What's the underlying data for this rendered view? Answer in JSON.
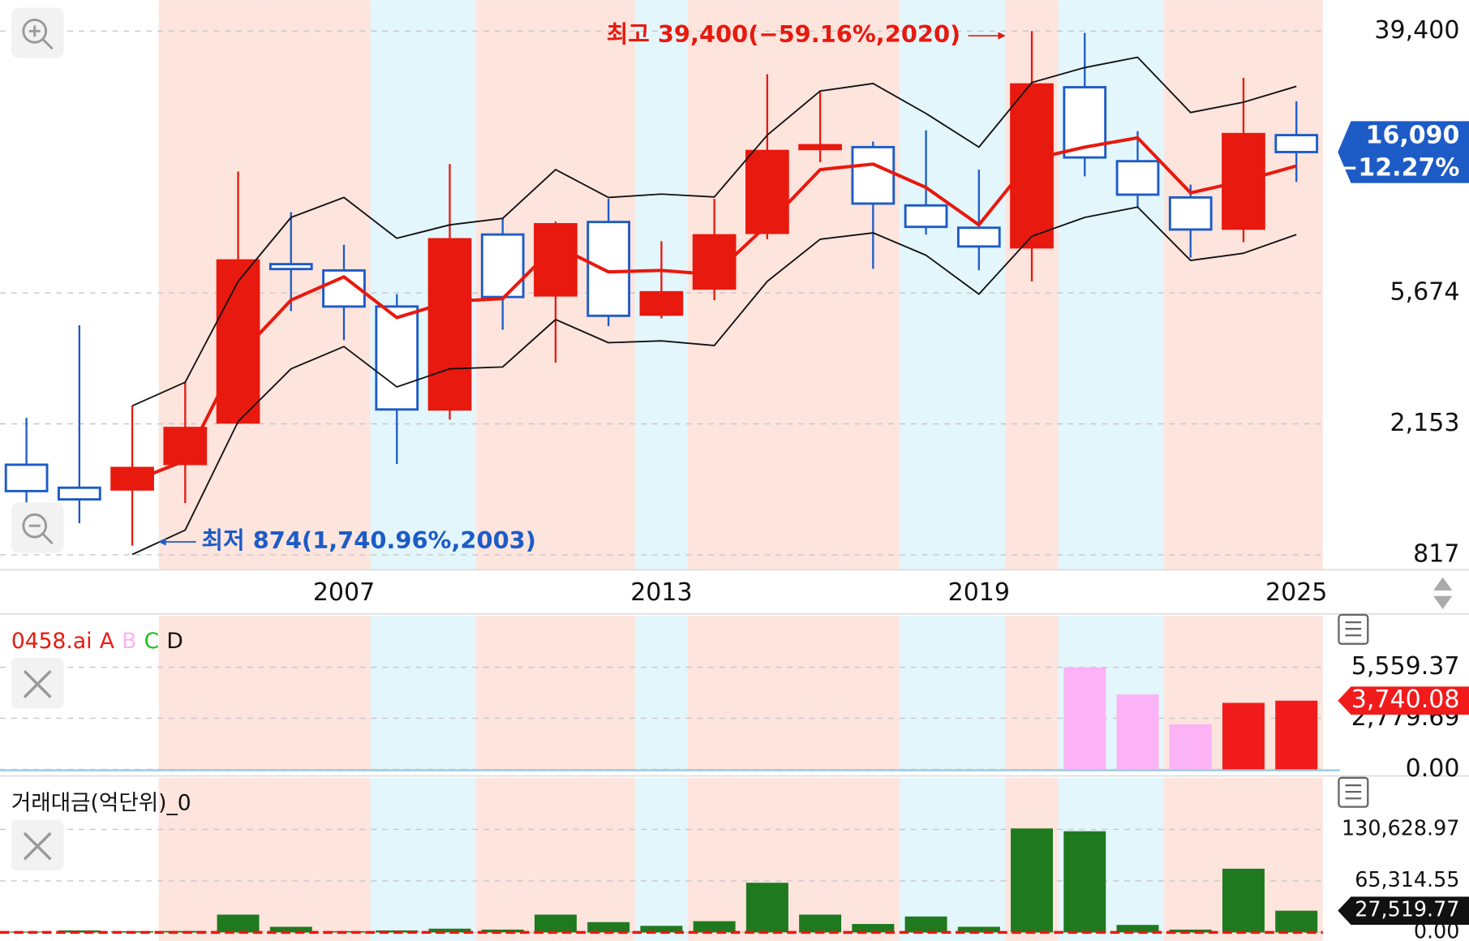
{
  "chart_data": [
    {
      "type": "candlestick",
      "x": [
        2001,
        2002,
        2003,
        2004,
        2005,
        2006,
        2007,
        2008,
        2009,
        2010,
        2011,
        2012,
        2013,
        2014,
        2015,
        2016,
        2017,
        2018,
        2019,
        2020,
        2021,
        2022,
        2023,
        2024,
        2025
      ],
      "open": [
        1591,
        1342,
        1325,
        1600,
        2175,
        7020,
        6700,
        5130,
        2395,
        8740,
        5570,
        9590,
        4830,
        5860,
        8850,
        16450,
        16690,
        10840,
        9190,
        7950,
        26000,
        15040,
        11500,
        9130,
        18240
      ],
      "high": [
        2251,
        4467,
        2462,
        2928,
        13930,
        10320,
        8100,
        5620,
        14720,
        9850,
        9630,
        11380,
        8320,
        11380,
        28630,
        25100,
        17390,
        18900,
        14130,
        39400,
        38850,
        18770,
        12640,
        27860,
        23430
      ],
      "low": [
        990,
        1032,
        874,
        1198,
        2150,
        4960,
        4000,
        1600,
        2222,
        4320,
        3390,
        4435,
        4700,
        5380,
        8440,
        14930,
        6780,
        8740,
        6710,
        6180,
        13450,
        10630,
        7360,
        8260,
        12900
      ],
      "close": [
        1309,
        1231,
        1553,
        2088,
        7215,
        6770,
        5130,
        2395,
        8440,
        5505,
        9430,
        4790,
        5700,
        8690,
        16220,
        16930,
        10990,
        9250,
        8000,
        26540,
        15460,
        11740,
        9070,
        18380,
        16090
      ],
      "lines": [
        {
          "color": "#e8190e",
          "values": [
            null,
            null,
            1407,
            1640,
            3550,
            5380,
            6390,
            4725,
            5325,
            5440,
            8050,
            6630,
            6700,
            6500,
            9390,
            14130,
            14720,
            12380,
            9390,
            15250,
            16690,
            17880,
            11900,
            13000,
            14520
          ]
        },
        {
          "color": "#111111",
          "values": [
            null,
            null,
            2460,
            2930,
            6180,
            9920,
            11500,
            8500,
            9390,
            9850,
            14130,
            11500,
            11790,
            11540,
            18240,
            25280,
            26720,
            21410,
            16690,
            26910,
            30070,
            32450,
            21560,
            23270,
            26170
          ]
        },
        {
          "color": "#111111",
          "values": [
            null,
            null,
            819,
            981,
            2190,
            3235,
            3815,
            2830,
            3235,
            3280,
            4660,
            3925,
            3980,
            3845,
            6180,
            8440,
            8850,
            7500,
            5620,
            8630,
            9920,
            10710,
            7215,
            7610,
            8740
          ]
        }
      ],
      "up_color": "#e8190e",
      "down_color": "#1d5bc6",
      "band_colors": [
        "#ffffff",
        "#ffffff",
        "#ffffff",
        "#fde4dd",
        "#fde4dd",
        "#fde4dd",
        "#fde4dd",
        "#e3f6fc",
        "#e3f6fc",
        "#fde4dd",
        "#fde4dd",
        "#fde4dd",
        "#e3f6fc",
        "#fde4dd",
        "#fde4dd",
        "#fde4dd",
        "#fde4dd",
        "#e3f6fc",
        "#e3f6fc",
        "#fde4dd",
        "#e3f6fc",
        "#e3f6fc",
        "#fde4dd",
        "#fde4dd",
        "#fde4dd"
      ],
      "log_scale": true,
      "grid": true,
      "xlim": [
        2000.5,
        2025.5
      ],
      "xticks": [
        2007,
        2013,
        2019,
        2025
      ],
      "ylim": [
        731,
        49520
      ],
      "yticks": [
        {
          "value": 39400,
          "label": "39,400"
        },
        {
          "value": 5674,
          "label": "5,674"
        },
        {
          "value": 2153,
          "label": "2,153"
        },
        817
      ],
      "high_label": {
        "text": "최고 39,400(−59.16%,2020)",
        "color": "#e8190e"
      },
      "low_label": {
        "text": "최저 874(1,740.96%,2003)",
        "color": "#1d5bc6"
      },
      "last": {
        "value": 16090,
        "label": "16,090"
      },
      "change": "−12.27%",
      "tag_color": "#1d5bc6"
    },
    {
      "type": "bar",
      "title": "0458.ai",
      "title_color": "#e8190e",
      "x": [
        2001,
        2002,
        2003,
        2004,
        2005,
        2006,
        2007,
        2008,
        2009,
        2010,
        2011,
        2012,
        2013,
        2014,
        2015,
        2016,
        2017,
        2018,
        2019,
        2020,
        2021,
        2022,
        2023,
        2024,
        2025
      ],
      "xlim": [
        2000.5,
        2025.5
      ],
      "series": [
        {
          "name": "A",
          "color": "#f21b1b",
          "values": [
            null,
            null,
            null,
            null,
            null,
            null,
            null,
            null,
            null,
            null,
            null,
            null,
            null,
            null,
            null,
            null,
            null,
            null,
            null,
            null,
            null,
            null,
            null,
            3621,
            3740.08
          ]
        },
        {
          "name": "B",
          "color": "#fbb3f5",
          "values": [
            null,
            null,
            null,
            null,
            null,
            null,
            null,
            null,
            null,
            null,
            null,
            null,
            null,
            null,
            null,
            null,
            null,
            null,
            null,
            null,
            5550,
            4080,
            2448,
            null,
            null
          ]
        },
        {
          "name": "C",
          "color": "#1fc01f",
          "values": [
            null,
            null,
            null,
            null,
            null,
            null,
            null,
            null,
            null,
            null,
            null,
            null,
            null,
            null,
            null,
            null,
            null,
            null,
            null,
            null,
            null,
            null,
            null,
            null,
            null
          ]
        },
        {
          "name": "D",
          "color": "#111111",
          "values": [
            null,
            null,
            null,
            null,
            null,
            null,
            null,
            null,
            null,
            null,
            null,
            null,
            null,
            null,
            null,
            null,
            null,
            null,
            null,
            null,
            null,
            null,
            null,
            null,
            null
          ]
        }
      ],
      "grid": true,
      "ylim": [
        0,
        8364
      ],
      "yticks": [
        {
          "value": 0,
          "label": "0.00"
        },
        {
          "value": 2779.69,
          "label": "2,779.69"
        },
        {
          "value": 5559.37,
          "label": "5,559.37"
        }
      ],
      "last": {
        "value": 3740.08,
        "label": "3,740.08"
      },
      "tag_color": "#f21b1b"
    },
    {
      "type": "bar",
      "title": "거래대금(억단위)_0",
      "title_color": "#111111",
      "x": [
        2001,
        2002,
        2003,
        2004,
        2005,
        2006,
        2007,
        2008,
        2009,
        2010,
        2011,
        2012,
        2013,
        2014,
        2015,
        2016,
        2017,
        2018,
        2019,
        2020,
        2021,
        2022,
        2023,
        2024,
        2025
      ],
      "xlim": [
        2000.5,
        2025.5
      ],
      "values": [
        1000,
        2500,
        1500,
        1800,
        22560,
        7100,
        1500,
        2500,
        4750,
        3560,
        22560,
        13060,
        8310,
        14250,
        62940,
        22560,
        10690,
        20190,
        7130,
        131800,
        128250,
        9500,
        3560,
        80750,
        27519.77
      ],
      "color": "#1f7a1f",
      "grid": true,
      "ylim": [
        0,
        196000
      ],
      "yticks": [
        {
          "value": 0,
          "label": "0.00"
        },
        {
          "value": 65314.55,
          "label": "65,314.55"
        },
        {
          "value": 130628.97,
          "label": "130,628.97"
        }
      ],
      "last": {
        "value": 27519.77,
        "label": "27,519.77"
      },
      "tag_color": "#111111"
    }
  ]
}
